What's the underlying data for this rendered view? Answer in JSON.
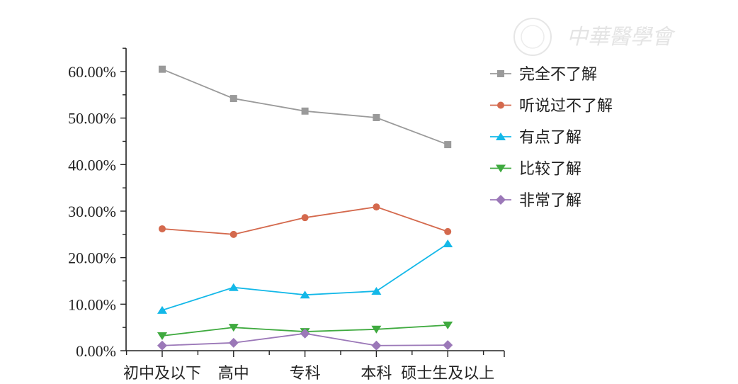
{
  "watermark": {
    "text": "中華醫學會"
  },
  "chart_data": {
    "type": "line",
    "title": "",
    "xlabel": "",
    "ylabel": "",
    "categories": [
      "初中及以下",
      "高中",
      "专科",
      "本科",
      "硕士生及以上"
    ],
    "ylim": [
      0,
      65
    ],
    "yticks": [
      0,
      10,
      20,
      30,
      40,
      50,
      60
    ],
    "ytick_labels": [
      "0.00%",
      "10.00%",
      "20.00%",
      "30.00%",
      "40.00%",
      "50.00%",
      "60.00%"
    ],
    "grid": false,
    "legend_position": "top-right",
    "series": [
      {
        "name": "完全不了解",
        "color": "#9a9a9a",
        "marker": "square",
        "values": [
          60.5,
          54.2,
          51.5,
          50.1,
          44.3
        ]
      },
      {
        "name": "听说过不了解",
        "color": "#d4694d",
        "marker": "circle",
        "values": [
          26.2,
          25.0,
          28.6,
          30.9,
          25.6
        ]
      },
      {
        "name": "有点了解",
        "color": "#13b8e8",
        "marker": "triangle-up",
        "values": [
          8.7,
          13.6,
          12.0,
          12.8,
          23.0
        ]
      },
      {
        "name": "比较了解",
        "color": "#3faa3f",
        "marker": "triangle-down",
        "values": [
          3.2,
          5.0,
          4.1,
          4.6,
          5.5
        ]
      },
      {
        "name": "非常了解",
        "color": "#9b78b8",
        "marker": "diamond",
        "values": [
          1.1,
          1.7,
          3.7,
          1.1,
          1.2
        ]
      }
    ]
  }
}
